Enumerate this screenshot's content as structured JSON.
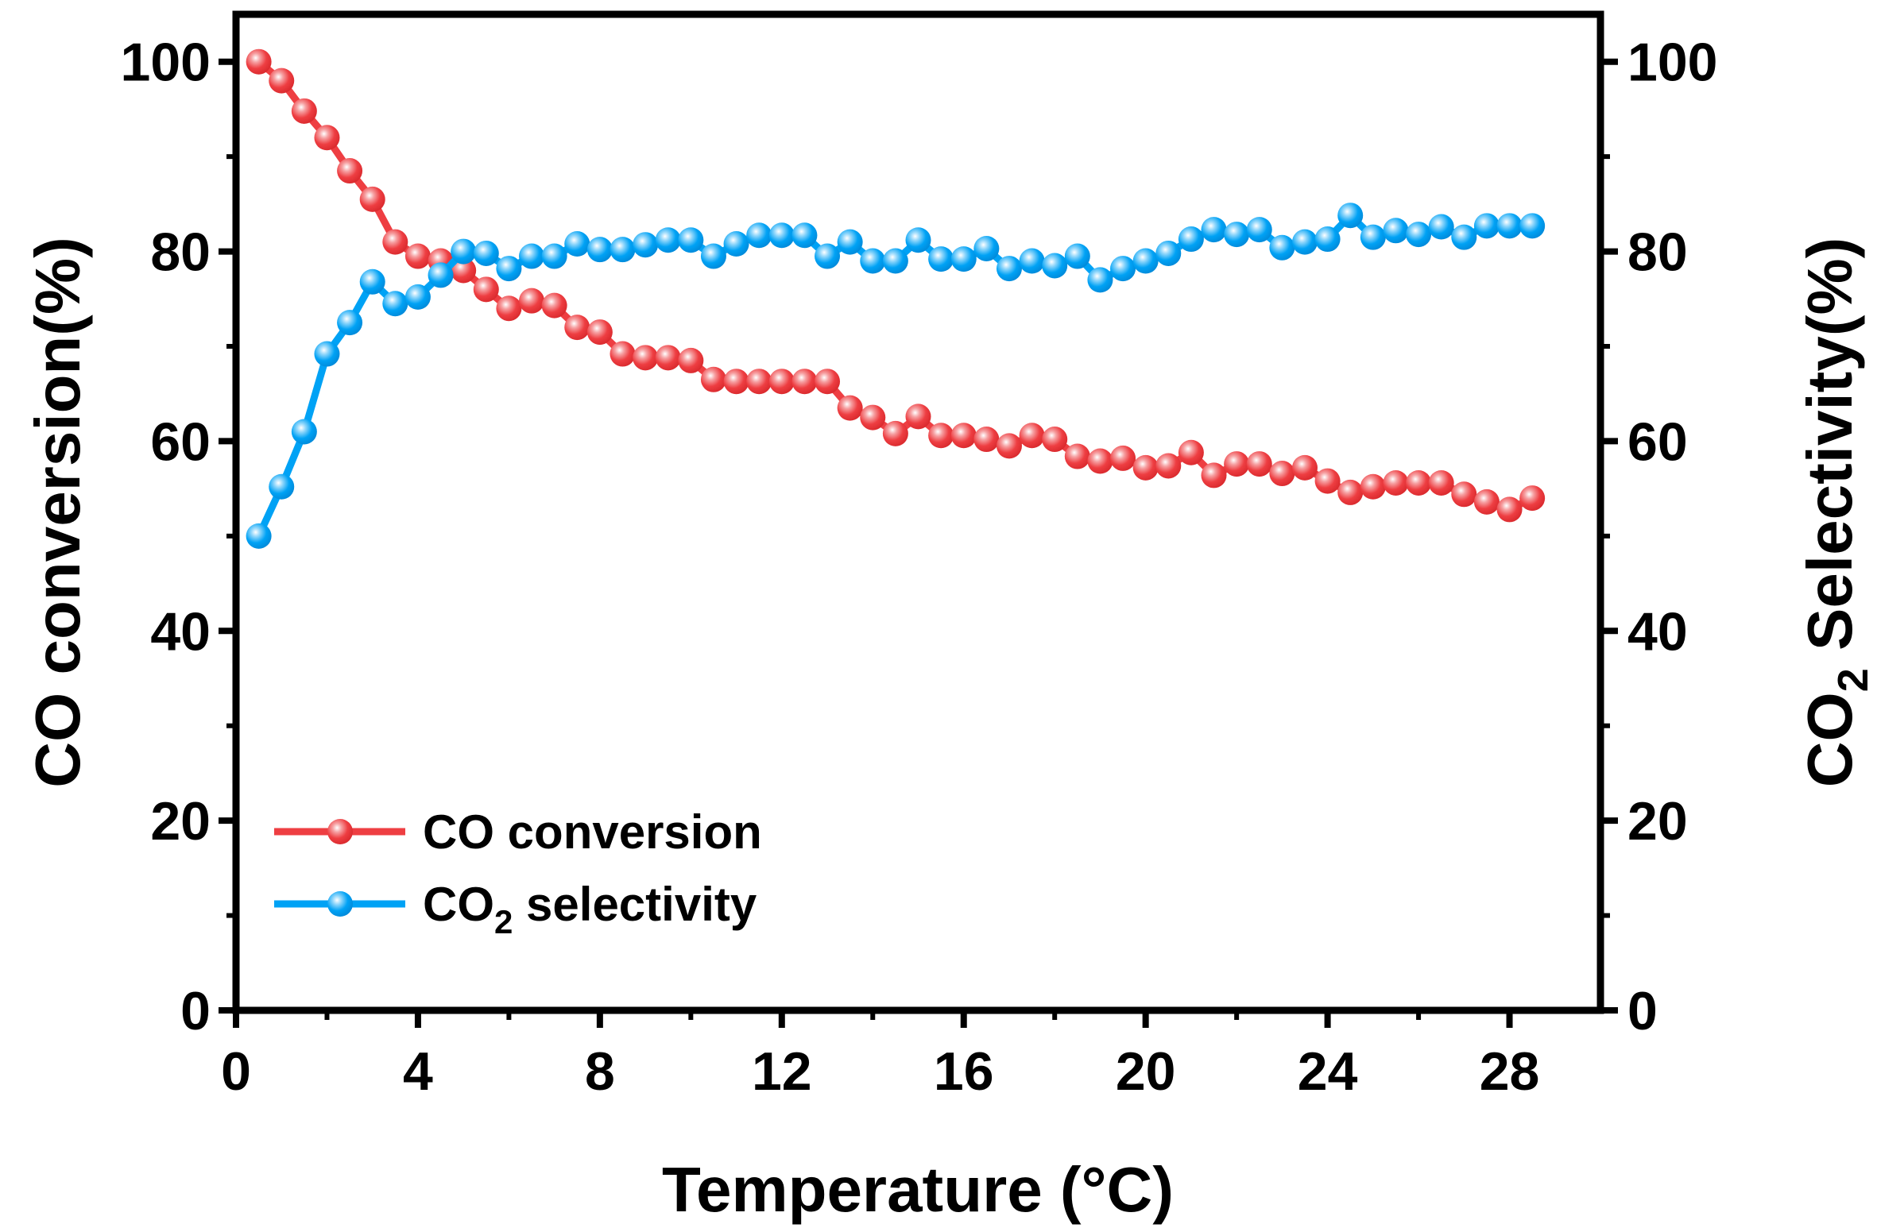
{
  "chart_data": {
    "type": "line",
    "xlabel": "Temperature (°C)",
    "xlabel_parts": {
      "main": "Temperature (",
      "sup": "o",
      "unit": "C)"
    },
    "ylabel_left": "CO conversion(%)",
    "ylabel_right": {
      "main": "CO",
      "sub": "2",
      "rest": " Selectivity(%)"
    },
    "xlim": [
      0,
      30
    ],
    "ylim": [
      0,
      105
    ],
    "x_ticks": [
      0,
      4,
      8,
      12,
      16,
      20,
      24,
      28
    ],
    "y_ticks": [
      0,
      20,
      40,
      60,
      80,
      100
    ],
    "grid": false,
    "legend_placement": "bottom-left",
    "legend": [
      {
        "label": "CO conversion",
        "parts": {
          "main": "CO conversion",
          "sub": "",
          "rest": ""
        }
      },
      {
        "label": "CO2 selectivity",
        "parts": {
          "main": "CO",
          "sub": "2",
          "rest": " selectivity"
        }
      }
    ],
    "x": [
      0.5,
      1,
      1.5,
      2,
      2.5,
      3,
      3.5,
      4,
      4.5,
      5,
      5.5,
      6,
      6.5,
      7,
      7.5,
      8,
      8.5,
      9,
      9.5,
      10,
      10.5,
      11,
      11.5,
      12,
      12.5,
      13,
      13.5,
      14,
      14.5,
      15,
      15.5,
      16,
      16.5,
      17,
      17.5,
      18,
      18.5,
      19,
      19.5,
      20,
      20.5,
      21,
      21.5,
      22,
      22.5,
      23,
      23.5,
      24,
      24.5,
      25,
      25.5,
      26,
      26.5,
      27,
      27.5,
      28,
      28.5
    ],
    "series": [
      {
        "name": "CO conversion",
        "axis": "left",
        "color": "#ee3e42",
        "values": [
          100,
          98,
          94.8,
          92,
          88.5,
          85.5,
          81,
          79.5,
          79,
          78,
          76,
          74,
          74.8,
          74.3,
          72,
          71.5,
          69.2,
          68.8,
          68.8,
          68.5,
          66.5,
          66.3,
          66.3,
          66.3,
          66.3,
          66.3,
          63.5,
          62.5,
          60.8,
          62.6,
          60.6,
          60.6,
          60.2,
          59.5,
          60.6,
          60.2,
          58.4,
          57.9,
          58.2,
          57.2,
          57.4,
          58.8,
          56.4,
          57.6,
          57.6,
          56.6,
          57.2,
          55.8,
          54.6,
          55.2,
          55.6,
          55.6,
          55.6,
          54.4,
          53.6,
          52.8,
          54
        ]
      },
      {
        "name": "CO2 selectivity",
        "axis": "right",
        "color": "#00a2f5",
        "values": [
          50,
          55.2,
          61,
          69.2,
          72.5,
          76.8,
          74.5,
          75.2,
          77.5,
          80,
          79.8,
          78.2,
          79.5,
          79.5,
          80.8,
          80.2,
          80.2,
          80.7,
          81.2,
          81.2,
          79.5,
          80.8,
          81.7,
          81.7,
          81.7,
          79.5,
          81,
          79,
          79,
          81.2,
          79.2,
          79.2,
          80.3,
          78.2,
          79,
          78.5,
          79.5,
          77,
          78.2,
          79,
          79.8,
          81.3,
          82.3,
          81.8,
          82.3,
          80.4,
          81,
          81.3,
          83.8,
          81.5,
          82.2,
          81.8,
          82.6,
          81.5,
          82.7,
          82.7,
          82.7
        ]
      }
    ]
  }
}
